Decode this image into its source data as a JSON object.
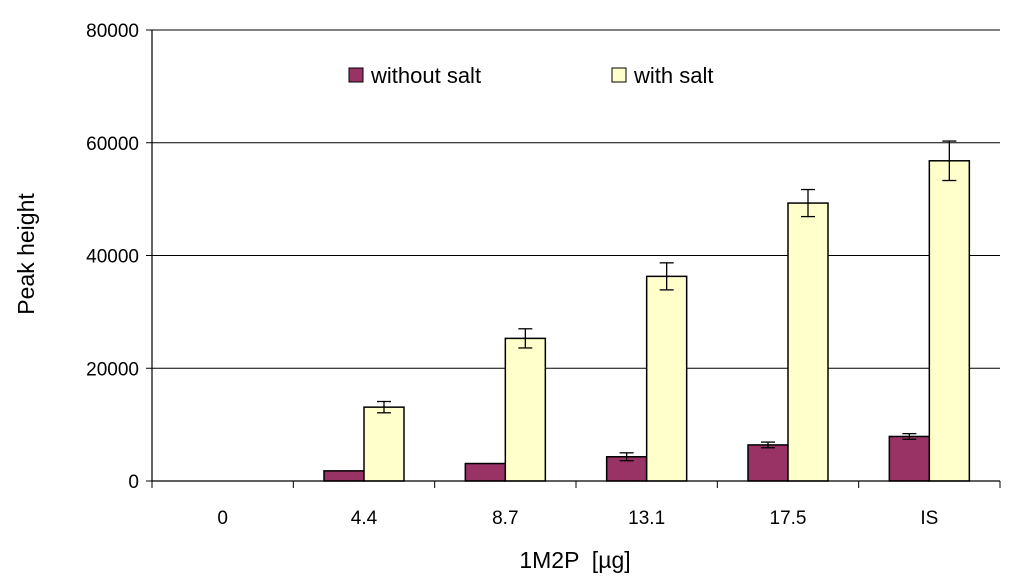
{
  "chart_data": {
    "type": "bar",
    "title": "",
    "xlabel": "1M2P  [µg]",
    "ylabel": "Peak height",
    "categories": [
      "0",
      "4.4",
      "8.7",
      "13.1",
      "17.5",
      "IS"
    ],
    "ylim": [
      0,
      80000
    ],
    "yticks": [
      0,
      20000,
      40000,
      60000,
      80000
    ],
    "ytick_labels": [
      "0",
      "20000",
      "40000",
      "60000",
      "80000"
    ],
    "grid": true,
    "legend_position": "top",
    "series": [
      {
        "name": "without salt",
        "color": "#993366",
        "values": [
          0,
          1800,
          3100,
          4300,
          6400,
          7900
        ],
        "errors": [
          0,
          0,
          0,
          700,
          500,
          500
        ]
      },
      {
        "name": "with salt",
        "color": "#FFFFCC",
        "values": [
          0,
          13100,
          25300,
          36300,
          49300,
          56800
        ],
        "errors": [
          0,
          1000,
          1700,
          2400,
          2400,
          3500
        ]
      }
    ]
  }
}
